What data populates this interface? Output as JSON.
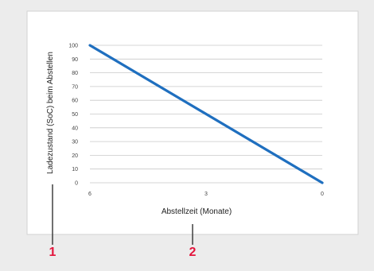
{
  "chart_data": {
    "type": "line",
    "title": "",
    "xlabel": "Abstellzeit (Monate)",
    "ylabel": "Ladezustand (SoC) beim Abstellen",
    "x_ticks": [
      "6",
      "3",
      "0"
    ],
    "y_ticks": [
      "0",
      "10",
      "20",
      "30",
      "40",
      "50",
      "60",
      "70",
      "80",
      "90",
      "100"
    ],
    "xlim": [
      6,
      0
    ],
    "ylim": [
      0,
      100
    ],
    "grid": "horizontal",
    "series": [
      {
        "x": [
          6,
          0
        ],
        "y": [
          100,
          0
        ],
        "color": "#1f6fbf"
      }
    ]
  },
  "callouts": [
    {
      "label": "1",
      "color": "#e3143c"
    },
    {
      "label": "2",
      "color": "#e3143c"
    }
  ],
  "colors": {
    "background": "#ececec",
    "panel": "#ffffff",
    "panel_border": "#d2d2d2",
    "grid": "#c8c8c8",
    "line": "#1f6fbf",
    "callout": "#e3143c"
  }
}
